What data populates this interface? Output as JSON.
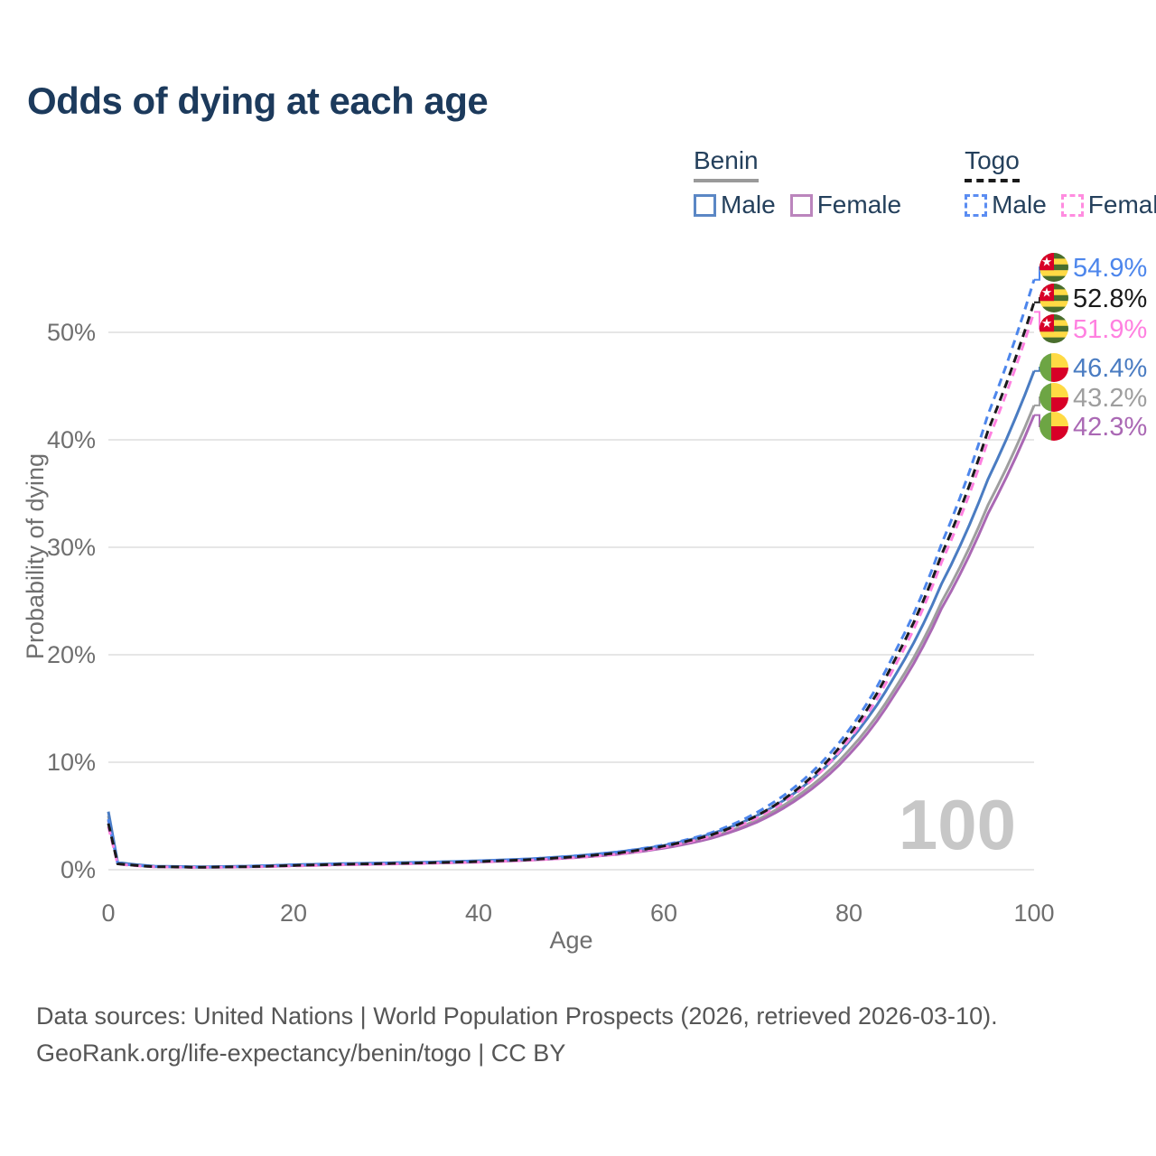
{
  "title": "Odds of dying at each age",
  "legend": {
    "groups": [
      {
        "country": "Benin",
        "line_style": "solid",
        "swatch_color": "#9a9a9a",
        "items": [
          {
            "label": "Male",
            "color": "#5b87c5"
          },
          {
            "label": "Female",
            "color": "#bb85bd"
          }
        ]
      },
      {
        "country": "Togo",
        "line_style": "dashed",
        "swatch_color": "#1a1a1a",
        "items": [
          {
            "label": "Male",
            "color": "#5b8df2"
          },
          {
            "label": "Female",
            "color": "#ff8ce0"
          }
        ]
      }
    ]
  },
  "axes": {
    "x": {
      "label": "Age",
      "ticks": [
        "0",
        "20",
        "40",
        "60",
        "80",
        "100"
      ]
    },
    "y": {
      "label": "Probability of dying",
      "ticks": [
        "0%",
        "10%",
        "20%",
        "30%",
        "40%",
        "50%"
      ]
    }
  },
  "watermark": "100",
  "end_labels": [
    {
      "series": "Togo Male",
      "value": "54.9%",
      "color": "#4d86ec",
      "flag": "togo"
    },
    {
      "series": "Togo",
      "value": "52.8%",
      "color": "#1a1a1a",
      "flag": "togo"
    },
    {
      "series": "Togo Female",
      "value": "51.9%",
      "color": "#ff80e0",
      "flag": "togo"
    },
    {
      "series": "Benin Male",
      "value": "46.4%",
      "color": "#4a7cc2",
      "flag": "benin"
    },
    {
      "series": "Benin",
      "value": "43.2%",
      "color": "#9e9e9e",
      "flag": "benin"
    },
    {
      "series": "Benin Female",
      "value": "42.3%",
      "color": "#aa68b4",
      "flag": "benin"
    }
  ],
  "flags": {
    "togo": {
      "green": "#496e2d",
      "yellow": "#ffda44",
      "red": "#d80027",
      "star": "#ffffff"
    },
    "benin": {
      "green": "#6da544",
      "yellow": "#ffda44",
      "red": "#d80027"
    }
  },
  "footer": {
    "line1": "Data sources: United Nations | World Population Prospects (2026, retrieved 2026-03-10).",
    "line2": "GeoRank.org/life-expectancy/benin/togo | CC BY"
  },
  "chart_data": {
    "type": "line",
    "title": "Odds of dying at each age",
    "xlabel": "Age",
    "ylabel": "Probability of dying",
    "xlim": [
      0,
      100
    ],
    "ylim": [
      0,
      56
    ],
    "grid": "horizontal",
    "legend_position": "top-right",
    "x": [
      0,
      1,
      5,
      10,
      15,
      20,
      25,
      30,
      35,
      40,
      45,
      50,
      55,
      60,
      65,
      70,
      75,
      80,
      85,
      90,
      95,
      100
    ],
    "unit": "%",
    "series": [
      {
        "name": "Togo Male",
        "country": "Togo",
        "sex": "male",
        "color": "#4d86ec",
        "dash": true,
        "values": [
          4.7,
          0.6,
          0.3,
          0.25,
          0.32,
          0.45,
          0.55,
          0.62,
          0.7,
          0.82,
          0.98,
          1.25,
          1.65,
          2.3,
          3.4,
          5.3,
          8.3,
          13.0,
          20.3,
          30.3,
          42.3,
          54.9
        ]
      },
      {
        "name": "Togo",
        "country": "Togo",
        "sex": "both",
        "color": "#1a1a1a",
        "dash": true,
        "values": [
          4.3,
          0.55,
          0.28,
          0.23,
          0.28,
          0.4,
          0.5,
          0.57,
          0.65,
          0.76,
          0.92,
          1.18,
          1.55,
          2.2,
          3.2,
          5.0,
          7.9,
          12.5,
          19.6,
          29.3,
          40.8,
          52.8
        ]
      },
      {
        "name": "Togo Female",
        "country": "Togo",
        "sex": "female",
        "color": "#ff80e0",
        "dash": true,
        "values": [
          4.0,
          0.52,
          0.26,
          0.21,
          0.25,
          0.35,
          0.45,
          0.52,
          0.6,
          0.7,
          0.86,
          1.1,
          1.45,
          2.1,
          3.1,
          4.8,
          7.6,
          12.1,
          19.0,
          28.6,
          39.9,
          51.9
        ]
      },
      {
        "name": "Benin Male",
        "country": "Benin",
        "sex": "male",
        "color": "#4a7cc2",
        "dash": false,
        "values": [
          5.4,
          0.68,
          0.33,
          0.27,
          0.33,
          0.46,
          0.56,
          0.63,
          0.71,
          0.83,
          0.99,
          1.25,
          1.65,
          2.25,
          3.3,
          5.0,
          7.7,
          11.9,
          18.1,
          26.6,
          36.3,
          46.4
        ]
      },
      {
        "name": "Benin",
        "country": "Benin",
        "sex": "both",
        "color": "#9e9e9e",
        "dash": false,
        "values": [
          5.0,
          0.62,
          0.3,
          0.25,
          0.3,
          0.42,
          0.51,
          0.58,
          0.66,
          0.77,
          0.92,
          1.17,
          1.52,
          2.1,
          3.0,
          4.6,
          7.2,
          11.1,
          16.9,
          24.9,
          33.9,
          43.2
        ]
      },
      {
        "name": "Benin Female",
        "country": "Benin",
        "sex": "female",
        "color": "#aa68b4",
        "dash": false,
        "values": [
          4.6,
          0.57,
          0.28,
          0.23,
          0.27,
          0.38,
          0.47,
          0.54,
          0.62,
          0.72,
          0.87,
          1.1,
          1.43,
          2.0,
          2.9,
          4.4,
          6.9,
          10.7,
          16.4,
          24.3,
          33.1,
          42.3
        ]
      }
    ]
  }
}
